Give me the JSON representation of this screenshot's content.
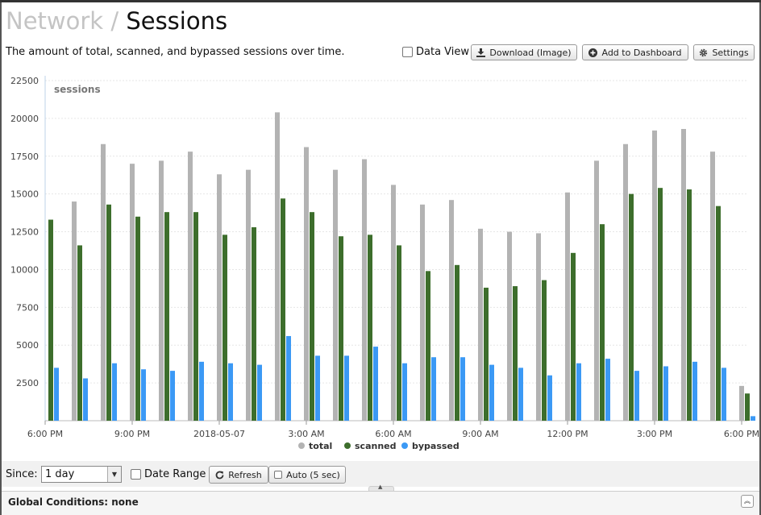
{
  "header": {
    "section": "Network",
    "separator": "/",
    "page_title": "Sessions"
  },
  "description": "The amount of total, scanned, and bypassed sessions over time.",
  "toolbar": {
    "data_view_label": "Data View",
    "download_label": "Download (Image)",
    "add_dashboard_label": "Add to Dashboard",
    "settings_label": "Settings"
  },
  "icons": {
    "download": "download-icon",
    "add": "plus-circle-icon",
    "settings": "gear-icon",
    "refresh": "refresh-icon",
    "collapse": "double-chevron-up-icon"
  },
  "chart_data": {
    "type": "bar",
    "ylabel": "sessions",
    "ylim": [
      0,
      22500
    ],
    "yticks": [
      2500,
      5000,
      7500,
      10000,
      12500,
      15000,
      17500,
      20000,
      22500
    ],
    "x_tick_labels": [
      "6:00 PM",
      "9:00 PM",
      "2018-05-07",
      "3:00 AM",
      "6:00 AM",
      "9:00 AM",
      "12:00 PM",
      "3:00 PM",
      "6:00 PM"
    ],
    "x_tick_every": 3,
    "grid": true,
    "legend_position": "bottom-center",
    "series": [
      {
        "name": "total",
        "color": "#b3b3b3",
        "values": [
          null,
          14500,
          18300,
          17000,
          17200,
          17800,
          16300,
          16600,
          20400,
          18100,
          16600,
          17300,
          15600,
          14300,
          14600,
          12700,
          12500,
          12400,
          15100,
          17200,
          18300,
          19200,
          19300,
          17800,
          2300
        ]
      },
      {
        "name": "scanned",
        "color": "#3d6e2c",
        "values": [
          13300,
          11600,
          14300,
          13500,
          13800,
          13800,
          12300,
          12800,
          14700,
          13800,
          12200,
          12300,
          11600,
          9900,
          10300,
          8800,
          8900,
          9300,
          11100,
          13000,
          15000,
          15400,
          15300,
          14200,
          1800
        ]
      },
      {
        "name": "bypassed",
        "color": "#3b99f5",
        "values": [
          3500,
          2800,
          3800,
          3400,
          3300,
          3900,
          3800,
          3700,
          5600,
          4300,
          4300,
          4900,
          3800,
          4200,
          4200,
          3700,
          3500,
          3000,
          3800,
          4100,
          3300,
          3600,
          3900,
          3500,
          300
        ]
      }
    ]
  },
  "controls": {
    "since_label": "Since:",
    "since_value": "1 day",
    "date_range_label": "Date Range",
    "refresh_label": "Refresh",
    "auto_label": "Auto (5 sec)"
  },
  "footer": {
    "global_conditions": "Global Conditions: none"
  }
}
